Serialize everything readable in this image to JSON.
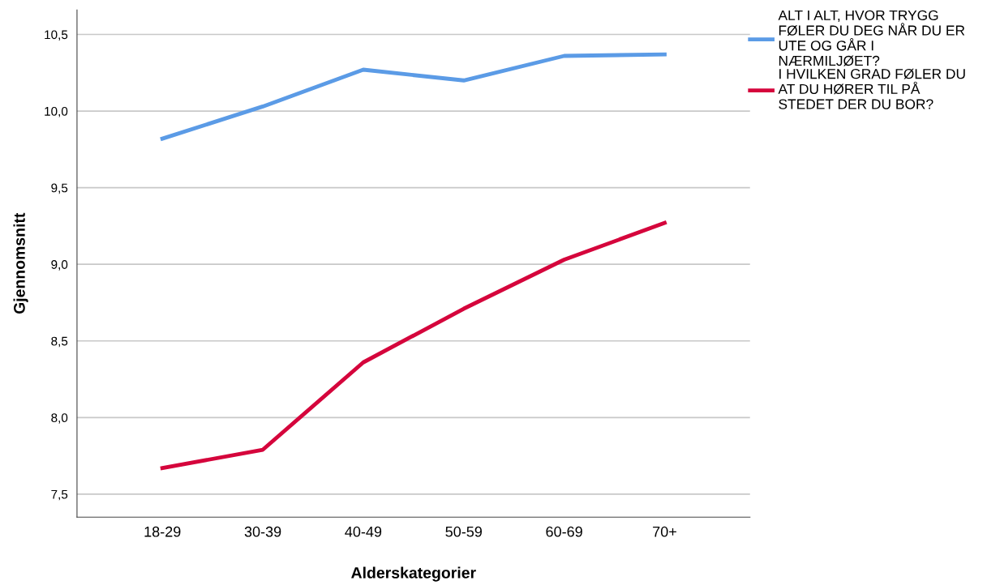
{
  "chart_data": {
    "type": "line",
    "xlabel": "Alderskategorier",
    "ylabel": "Gjennomsnitt",
    "categories": [
      "18-29",
      "30-39",
      "40-49",
      "50-59",
      "60-69",
      "70+"
    ],
    "series": [
      {
        "name": "ALT I ALT, HVOR TRYGG\nFØLER DU DEG NÅR DU ER\nUTE OG GÅR I\nNÆRMILJØET?",
        "color": "#5b9be6",
        "values": [
          9.82,
          10.03,
          10.27,
          10.2,
          10.36,
          10.37
        ]
      },
      {
        "name": "I HVILKEN GRAD FØLER DU\nAT DU HØRER TIL PÅ\nSTEDET DER DU BOR?",
        "color": "#d5053c",
        "values": [
          7.67,
          7.79,
          8.36,
          8.71,
          9.03,
          9.27
        ]
      }
    ],
    "ylim": [
      7.35,
      10.66
    ],
    "yticks": [
      {
        "value": 7.5,
        "label": "7,5"
      },
      {
        "value": 8.0,
        "label": "8,0"
      },
      {
        "value": 8.5,
        "label": "8,5"
      },
      {
        "value": 9.0,
        "label": "9,0"
      },
      {
        "value": 9.5,
        "label": "9,5"
      },
      {
        "value": 10.0,
        "label": "10,0"
      },
      {
        "value": 10.5,
        "label": "10,5"
      }
    ],
    "grid": "y",
    "legend": "top right",
    "marker": "none",
    "line_style": "solid"
  }
}
